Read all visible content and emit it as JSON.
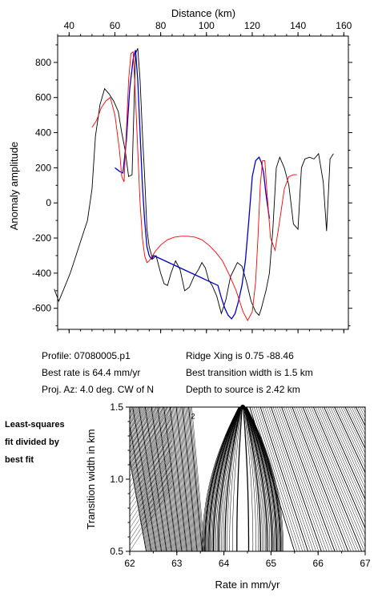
{
  "info": {
    "profile": "Profile: 07080005.p1",
    "best_rate": "Best rate is 64.4 mm/yr",
    "proj_az": "Proj. Az: 4.0 deg. CW of N",
    "ridge_xing": "Ridge Xing is 0.75 -88.46",
    "best_width": "Best transition width is 1.5 km",
    "depth": "Depth to source is   2.42 km"
  },
  "side_label": [
    "Least-squares",
    "fit divided by",
    "best fit"
  ],
  "chart_data": [
    {
      "type": "line",
      "xlabel": "Distance (km)",
      "ylabel": "Anomaly amplitude",
      "xlim": [
        35,
        162
      ],
      "ylim": [
        -720,
        950
      ],
      "xticks": [
        40,
        60,
        80,
        100,
        120,
        140,
        160
      ],
      "yticks": [
        -600,
        -400,
        -200,
        0,
        200,
        400,
        600,
        800
      ],
      "axis_position": "top",
      "series": [
        {
          "color": "#000000",
          "x": [
            33.5,
            35.5,
            38,
            40.5,
            43,
            45.5,
            48,
            50,
            51.5,
            53.5,
            55.5,
            57.5,
            59.5,
            61.5,
            63,
            64.5,
            66,
            67.5,
            69,
            70,
            71,
            72,
            73,
            74,
            75,
            76.5,
            78,
            80,
            81.5,
            83,
            84.5,
            86.5,
            88.5,
            90.5,
            92.5,
            94.5,
            96.5,
            98,
            99.5,
            101,
            102.5,
            104.5,
            106.5,
            108.5,
            110.5,
            112,
            113.5,
            115.5,
            117.5,
            119.5,
            121.5,
            123,
            124,
            125,
            126,
            127.5,
            129,
            130.5,
            132,
            134,
            136,
            138,
            140,
            141.5,
            143,
            145,
            147,
            149,
            151,
            152.5,
            154,
            155.5
          ],
          "y": [
            -490,
            -560,
            -480,
            -400,
            -300,
            -200,
            -100,
            80,
            380,
            560,
            650,
            620,
            580,
            520,
            400,
            300,
            150,
            160,
            850,
            880,
            700,
            400,
            150,
            -150,
            -250,
            -320,
            -300,
            -400,
            -460,
            -470,
            -400,
            -330,
            -380,
            -500,
            -480,
            -420,
            -380,
            -340,
            -370,
            -440,
            -470,
            -530,
            -630,
            -550,
            -420,
            -380,
            -340,
            -360,
            -450,
            -560,
            -620,
            -640,
            -600,
            -550,
            -500,
            -400,
            -150,
            200,
            260,
            200,
            100,
            -120,
            -150,
            200,
            250,
            260,
            250,
            280,
            120,
            -160,
            250,
            280
          ]
        },
        {
          "color": "#0000cc",
          "x": [
            60,
            62,
            63.5,
            65,
            66.5,
            68,
            69,
            70,
            71,
            72,
            73,
            74,
            75,
            76,
            77,
            105,
            106.5,
            108,
            109.5,
            111,
            112.5,
            114,
            115.5,
            117,
            118.5,
            120,
            121.5,
            123,
            124,
            125,
            126,
            127.5
          ],
          "y": [
            200,
            180,
            170,
            350,
            650,
            820,
            870,
            700,
            400,
            100,
            -100,
            -250,
            -300,
            -320,
            -300,
            -470,
            -540,
            -600,
            -640,
            -660,
            -630,
            -560,
            -470,
            -330,
            -100,
            150,
            240,
            260,
            230,
            170,
            50,
            -90
          ]
        },
        {
          "color": "#ff0000",
          "x": [
            50,
            52,
            54,
            56,
            58,
            60,
            62,
            63,
            64,
            65,
            66,
            67,
            68,
            69,
            70,
            71,
            72,
            73,
            74,
            75,
            76,
            77,
            78,
            80,
            83,
            86,
            89,
            92,
            95,
            98,
            101,
            104,
            107,
            110,
            113,
            116,
            118,
            120,
            121.5,
            122.5,
            123.5,
            124.5,
            125.5,
            126.5,
            128,
            130,
            132,
            134,
            136,
            138,
            139.5
          ],
          "y": [
            430,
            470,
            540,
            580,
            600,
            500,
            300,
            150,
            120,
            400,
            700,
            850,
            860,
            600,
            300,
            0,
            -200,
            -300,
            -340,
            -330,
            -310,
            -290,
            -270,
            -240,
            -210,
            -195,
            -190,
            -190,
            -195,
            -210,
            -240,
            -280,
            -330,
            -410,
            -500,
            -620,
            -670,
            -620,
            -450,
            -200,
            100,
            240,
            240,
            50,
            -200,
            -270,
            -100,
            80,
            150,
            160,
            160
          ]
        }
      ]
    },
    {
      "type": "contour",
      "title": "",
      "xlabel": "Rate in mm/yr",
      "ylabel": "Transition width in km",
      "xlim": [
        62,
        67
      ],
      "ylim": [
        0.5,
        1.5
      ],
      "xticks": [
        62,
        63,
        64,
        65,
        66,
        67
      ],
      "yticks": [
        0.5,
        1.0,
        1.5
      ],
      "best_fit": {
        "x": 64.4,
        "y": 1.5
      },
      "contour_label": "2"
    }
  ]
}
